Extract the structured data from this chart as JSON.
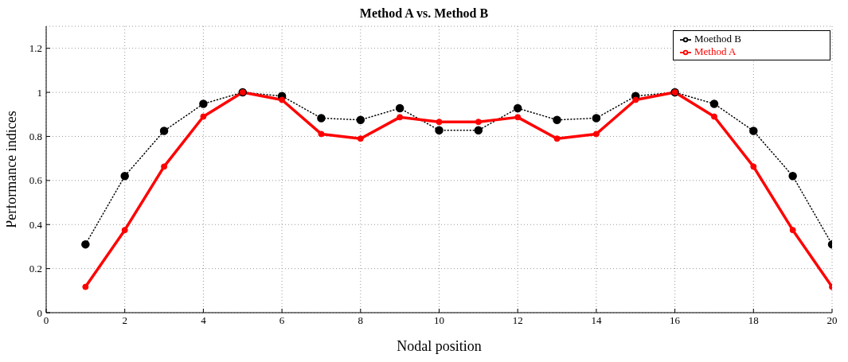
{
  "chart_data": {
    "type": "line",
    "title": "Method A vs. Method B",
    "xlabel": "Nodal position",
    "ylabel": "Performance indices",
    "x": [
      1,
      2,
      3,
      4,
      5,
      6,
      7,
      8,
      9,
      10,
      11,
      12,
      13,
      14,
      15,
      16,
      17,
      18,
      19,
      20
    ],
    "series": [
      {
        "name": "Moethod B",
        "color": "#000000",
        "line_style": "dotted",
        "marker": "circle",
        "values": [
          0.31,
          0.62,
          0.825,
          0.948,
          1.0,
          0.983,
          0.883,
          0.875,
          0.928,
          0.828,
          0.828,
          0.928,
          0.875,
          0.883,
          0.983,
          1.0,
          0.948,
          0.825,
          0.62,
          0.31
        ]
      },
      {
        "name": "Method A",
        "color": "#ff0000",
        "line_style": "solid",
        "marker": "circle",
        "values": [
          0.117,
          0.375,
          0.663,
          0.89,
          1.0,
          0.966,
          0.811,
          0.79,
          0.887,
          0.866,
          0.866,
          0.887,
          0.79,
          0.811,
          0.966,
          1.0,
          0.89,
          0.663,
          0.375,
          0.117
        ]
      }
    ],
    "xlim": [
      0,
      20
    ],
    "xticks": [
      0,
      2,
      4,
      6,
      8,
      10,
      12,
      14,
      16,
      18,
      20
    ],
    "ylim": [
      0,
      1.3
    ],
    "yticks": [
      0,
      0.2,
      0.4,
      0.6,
      0.8,
      1,
      1.2
    ],
    "grid": true,
    "legend": "top right"
  }
}
